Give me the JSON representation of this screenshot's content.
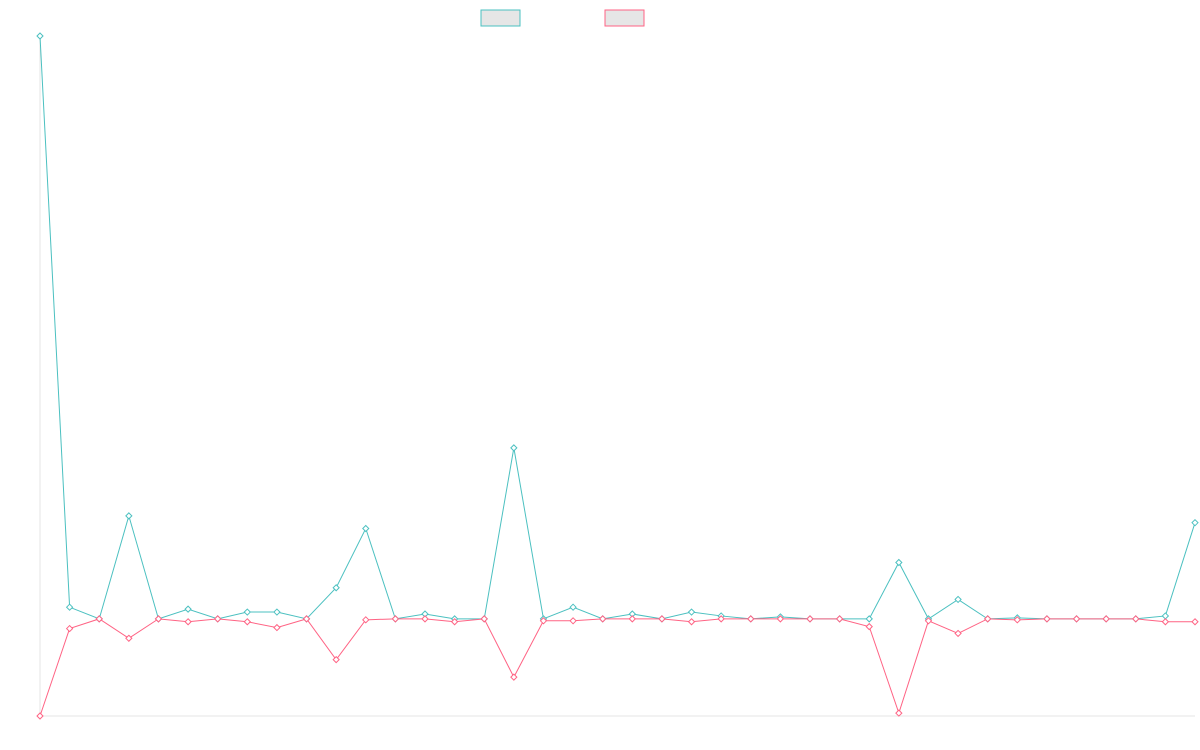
{
  "chart_data": {
    "type": "line",
    "title": "",
    "xlabel": "",
    "ylabel": "",
    "grid": false,
    "legend_position": "top-center",
    "x": [
      0,
      1,
      2,
      3,
      4,
      5,
      6,
      7,
      8,
      9,
      10,
      11,
      12,
      13,
      14,
      15,
      16,
      17,
      18,
      19,
      20,
      21,
      22,
      23,
      24,
      25,
      26,
      27,
      28,
      29,
      30,
      31,
      32,
      33,
      34,
      35,
      36,
      37,
      38,
      39
    ],
    "ylim": [
      -100,
      600
    ],
    "series": [
      {
        "name": "",
        "color": "#4bc0c0",
        "values": [
          600,
          12,
          0,
          106,
          0,
          10,
          0,
          7,
          7,
          0,
          32,
          93,
          0,
          5,
          0,
          0,
          176,
          0,
          12,
          0,
          5,
          0,
          7,
          3,
          0,
          2,
          0,
          0,
          0,
          58,
          0,
          20,
          0,
          1,
          0,
          0,
          0,
          0,
          3,
          99
        ]
      },
      {
        "name": "",
        "color": "#ff6384",
        "values": [
          -100,
          -10,
          0,
          -20,
          0,
          -3,
          0,
          -3,
          -9,
          0,
          -42,
          -1,
          0,
          0,
          -3,
          0,
          -60,
          -2,
          -2,
          0,
          0,
          0,
          -3,
          0,
          0,
          0,
          0,
          0,
          -8,
          -97,
          -2,
          -15,
          0,
          -1,
          0,
          0,
          0,
          0,
          -3,
          -3
        ]
      }
    ]
  }
}
